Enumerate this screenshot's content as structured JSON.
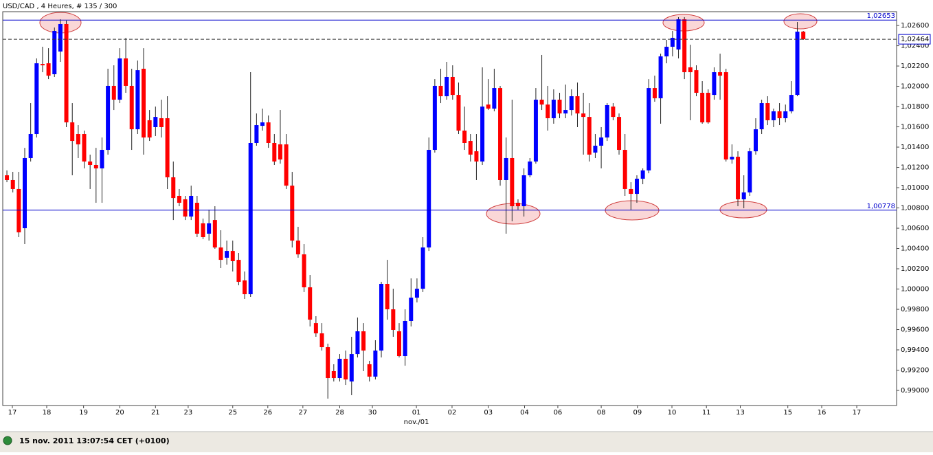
{
  "chart_data": {
    "type": "candlestick",
    "title": "USD/CAD , 4 Heures, # 135 / 300",
    "footer": "15 nov. 2011 13:07:54  CET (+0100)",
    "up_color": "#0000ff",
    "down_color": "#ff0000",
    "open": [
      1.01122,
      1.01075,
      1.00987,
      1.006,
      1.01292,
      1.01529,
      1.0222,
      1.02227,
      1.02119,
      1.02343,
      1.02614,
      1.01644,
      1.01529,
      1.01529,
      1.01258,
      1.01224,
      1.0119,
      1.01373,
      1.02004,
      1.01868,
      1.02275,
      1.02004,
      1.01576,
      1.02173,
      1.01665,
      1.01597,
      1.01685,
      1.01685,
      1.01102,
      1.00919,
      1.00885,
      1.00715,
      1.00851,
      1.00648,
      1.00546,
      1.00681,
      1.0041,
      1.00309,
      1.00376,
      1.00288,
      1.00085,
      0.99949,
      1.01441,
      1.0161,
      1.01644,
      1.01441,
      1.01427,
      1.01427,
      1.0102,
      1.00478,
      1.00342,
      1.00017,
      0.99664,
      0.99563,
      0.99427,
      0.9919,
      0.99122,
      0.99312,
      0.99088,
      0.99359,
      0.99583,
      0.99258,
      0.99136,
      0.99393,
      1.00051,
      0.998,
      0.99583,
      0.99339,
      0.99685,
      0.99915,
      1.00003,
      1.0041,
      1.01373,
      1.02004,
      1.01902,
      1.02092,
      1.01915,
      1.01563,
      1.01461,
      1.01359,
      1.01258,
      1.0182,
      1.0178,
      1.01983,
      1.01075,
      1.01292,
      1.00851,
      1.00817,
      1.01122,
      1.01258,
      1.01868,
      1.0182,
      1.01685,
      1.01868,
      1.01732,
      1.01766,
      1.01902,
      1.01732,
      1.01698,
      1.01346,
      1.01414,
      1.01495,
      1.018,
      1.01698,
      1.01373,
      1.00987,
      1.00939,
      1.01088,
      1.0117,
      1.01983,
      1.01882,
      1.02295,
      1.0239,
      1.02363,
      1.02661,
      1.02187,
      1.02159,
      1.01936,
      1.01936,
      1.01915,
      1.02139,
      1.02139,
      1.01278,
      1.01305,
      1.00885,
      1.00953,
      1.01359,
      1.01576,
      1.01834,
      1.01665,
      1.01753,
      1.01685,
      1.01753,
      1.01915,
      1.02539
    ],
    "high": [
      1.0117,
      1.01156,
      1.01156,
      1.01393,
      1.01834,
      1.02275,
      1.0239,
      1.02376,
      1.0258,
      1.02661,
      1.02648,
      1.01834,
      1.01617,
      1.01563,
      1.01326,
      1.01393,
      1.01495,
      1.02173,
      1.02207,
      1.02376,
      1.02478,
      1.02173,
      1.02254,
      1.02376,
      1.01766,
      1.018,
      1.01868,
      1.01902,
      1.01258,
      1.00987,
      1.00919,
      1.0102,
      1.00919,
      1.00695,
      1.00783,
      1.00817,
      1.0058,
      1.00478,
      1.00478,
      1.00356,
      1.00173,
      1.02139,
      1.01732,
      1.0178,
      1.01712,
      1.01529,
      1.01766,
      1.01529,
      1.01156,
      1.00614,
      1.00444,
      1.00139,
      0.99732,
      0.99664,
      0.99461,
      0.99258,
      0.99359,
      0.99393,
      0.99529,
      0.99719,
      0.99664,
      0.99292,
      0.99495,
      1.00071,
      1.00288,
      1.00003,
      0.99664,
      0.998,
      1.00105,
      1.00105,
      1.00512,
      1.01495,
      1.02071,
      1.02173,
      1.02241,
      1.02207,
      1.02037,
      1.018,
      1.01529,
      1.01529,
      1.02187,
      1.02071,
      1.02173,
      1.02004,
      1.01495,
      1.01868,
      1.00885,
      1.0119,
      1.01292,
      1.01983,
      1.02309,
      1.02004,
      1.0197,
      1.01936,
      1.02017,
      1.0197,
      1.02037,
      1.01936,
      1.01834,
      1.01529,
      1.01597,
      1.01834,
      1.01834,
      1.01732,
      1.01529,
      1.01054,
      1.01122,
      1.0119,
      1.02071,
      1.02105,
      1.02322,
      1.02458,
      1.02546,
      1.02682,
      1.02682,
      1.0241,
      1.02207,
      1.02051,
      1.0197,
      1.02187,
      1.02322,
      1.02173,
      1.01427,
      1.01359,
      1.01122,
      1.01393,
      1.01685,
      1.01868,
      1.01902,
      1.0178,
      1.01834,
      1.0182,
      1.02051,
      1.02634,
      1.02546
    ],
    "low": [
      1.01054,
      1.00953,
      1.00512,
      1.00444,
      1.01258,
      1.01495,
      1.02139,
      1.02071,
      1.02092,
      1.02241,
      1.01597,
      1.01122,
      1.01292,
      1.0119,
      1.00987,
      1.00851,
      1.00851,
      1.01326,
      1.01766,
      1.01834,
      1.01936,
      1.01373,
      1.01529,
      1.01326,
      1.01461,
      1.01509,
      1.01495,
      1.00987,
      1.00681,
      1.00817,
      1.00681,
      1.00681,
      1.00512,
      1.00492,
      1.00478,
      1.00397,
      1.00207,
      1.00241,
      1.00173,
      1.00037,
      0.99902,
      0.99922,
      1.01414,
      1.01563,
      1.01393,
      1.01224,
      1.01237,
      1.00987,
      1.0041,
      1.00309,
      0.9997,
      0.99631,
      0.99529,
      0.99393,
      0.98919,
      0.99088,
      0.99088,
      0.99054,
      0.98953,
      0.99325,
      0.9919,
      0.99088,
      0.99108,
      0.99325,
      0.99698,
      0.99529,
      0.99325,
      0.99244,
      0.99631,
      0.99868,
      0.9997,
      1.00376,
      1.01346,
      1.01834,
      1.01868,
      1.01868,
      1.01529,
      1.01373,
      1.01258,
      1.01075,
      1.01224,
      1.01766,
      1.01753,
      1.0102,
      1.00546,
      1.00668,
      1.00783,
      1.00715,
      1.01102,
      1.01237,
      1.01766,
      1.01563,
      1.01631,
      1.01685,
      1.01685,
      1.01712,
      1.01597,
      1.01326,
      1.01258,
      1.01292,
      1.0119,
      1.01461,
      1.01665,
      1.01326,
      1.00919,
      1.00783,
      1.00851,
      1.01034,
      1.01142,
      1.01848,
      1.01631,
      1.02227,
      1.02295,
      1.02275,
      1.02071,
      1.01665,
      1.01902,
      1.01631,
      1.01631,
      1.01868,
      1.01868,
      1.01258,
      1.01237,
      1.00817,
      1.00797,
      1.00919,
      1.01326,
      1.01529,
      1.01617,
      1.01597,
      1.01617,
      1.01644,
      1.01732,
      1.01902,
      1.02458
    ],
    "close": [
      1.01075,
      1.00987,
      1.00559,
      1.01292,
      1.01529,
      1.02227,
      1.02207,
      1.02105,
      1.02546,
      1.02614,
      1.01644,
      1.01461,
      1.01427,
      1.01258,
      1.01224,
      1.0119,
      1.01373,
      1.02004,
      1.01868,
      1.02275,
      1.02004,
      1.01576,
      1.02159,
      1.01495,
      1.01495,
      1.01698,
      1.01597,
      1.01102,
      1.00898,
      1.00851,
      1.00715,
      1.00919,
      1.00546,
      1.00512,
      1.00648,
      1.0041,
      1.00288,
      1.00376,
      1.00275,
      1.00071,
      0.99949,
      1.01441,
      1.01617,
      1.01644,
      1.01441,
      1.01258,
      1.01278,
      1.0102,
      1.00478,
      1.00342,
      1.00017,
      0.99698,
      0.99563,
      0.99427,
      0.99122,
      0.99122,
      0.99312,
      0.99108,
      0.99359,
      0.99583,
      0.99393,
      0.99136,
      0.99393,
      1.00051,
      0.998,
      0.99597,
      0.99339,
      0.99685,
      0.99915,
      1.00003,
      1.0041,
      1.01373,
      1.02004,
      1.01902,
      1.02092,
      1.01915,
      1.01563,
      1.01441,
      1.01326,
      1.01258,
      1.018,
      1.0178,
      1.01983,
      1.01075,
      1.01292,
      1.00817,
      1.00817,
      1.01122,
      1.01258,
      1.01868,
      1.0182,
      1.01685,
      1.01868,
      1.01732,
      1.01766,
      1.01902,
      1.01732,
      1.01698,
      1.01326,
      1.01414,
      1.01495,
      1.01814,
      1.01698,
      1.01373,
      1.00987,
      1.00939,
      1.01088,
      1.0117,
      1.01983,
      1.01882,
      1.02295,
      1.0239,
      1.02478,
      1.02661,
      1.02139,
      1.02139,
      1.01936,
      1.01644,
      1.01644,
      1.02139,
      1.02105,
      1.01278,
      1.01305,
      1.00885,
      1.00953,
      1.01359,
      1.01576,
      1.01834,
      1.01665,
      1.01753,
      1.01685,
      1.01753,
      1.01915,
      1.02539,
      1.02464
    ],
    "ylim": [
      0.98851,
      1.02736
    ],
    "xlim": [
      -0.7,
      149.7
    ],
    "yticks": [
      {
        "value": 0.99,
        "label": "0,99000"
      },
      {
        "value": 0.992,
        "label": "0,99200"
      },
      {
        "value": 0.994,
        "label": "0,99400"
      },
      {
        "value": 0.996,
        "label": "0,99600"
      },
      {
        "value": 0.998,
        "label": "0,99800"
      },
      {
        "value": 1.0,
        "label": "1,00000"
      },
      {
        "value": 1.002,
        "label": "1,00200"
      },
      {
        "value": 1.004,
        "label": "1,00400"
      },
      {
        "value": 1.006,
        "label": "1,00600"
      },
      {
        "value": 1.008,
        "label": "1,00800"
      },
      {
        "value": 1.01,
        "label": "1,01000"
      },
      {
        "value": 1.012,
        "label": "1,01200"
      },
      {
        "value": 1.014,
        "label": "1,01400"
      },
      {
        "value": 1.016,
        "label": "1,01600"
      },
      {
        "value": 1.018,
        "label": "1,01800"
      },
      {
        "value": 1.02,
        "label": "1,02000"
      },
      {
        "value": 1.022,
        "label": "1,02200"
      },
      {
        "value": 1.024,
        "label": "1,02400"
      },
      {
        "value": 1.026,
        "label": "1,02600"
      }
    ],
    "xticks": [
      {
        "value": 0.92,
        "label": "17"
      },
      {
        "value": 6.7,
        "label": "18"
      },
      {
        "value": 12.9,
        "label": "19"
      },
      {
        "value": 19.0,
        "label": "20"
      },
      {
        "value": 25.0,
        "label": "21"
      },
      {
        "value": 30.5,
        "label": "23"
      },
      {
        "value": 38.0,
        "label": "25"
      },
      {
        "value": 43.9,
        "label": "26"
      },
      {
        "value": 49.8,
        "label": "27"
      },
      {
        "value": 56.0,
        "label": "28"
      },
      {
        "value": 61.5,
        "label": "30"
      },
      {
        "value": 68.9,
        "label": "01"
      },
      {
        "value": 74.9,
        "label": "02"
      },
      {
        "value": 81.0,
        "label": "03"
      },
      {
        "value": 87.1,
        "label": "04"
      },
      {
        "value": 92.7,
        "label": "06"
      },
      {
        "value": 100.0,
        "label": "08"
      },
      {
        "value": 106.1,
        "label": "09"
      },
      {
        "value": 111.9,
        "label": "10"
      },
      {
        "value": 117.7,
        "label": "11"
      },
      {
        "value": 123.4,
        "label": "13"
      },
      {
        "value": 131.4,
        "label": "15"
      },
      {
        "value": 137.1,
        "label": "16"
      },
      {
        "value": 143.0,
        "label": "17"
      }
    ],
    "month_label": {
      "value": 68.9,
      "label": "nov./01"
    },
    "levels": [
      {
        "value": 1.02653,
        "label": "1,02653"
      },
      {
        "value": 1.00778,
        "label": "1,00778"
      }
    ],
    "level_color": "#0000cc",
    "current_price": {
      "value": 1.02464,
      "label": "1,02464"
    }
  }
}
